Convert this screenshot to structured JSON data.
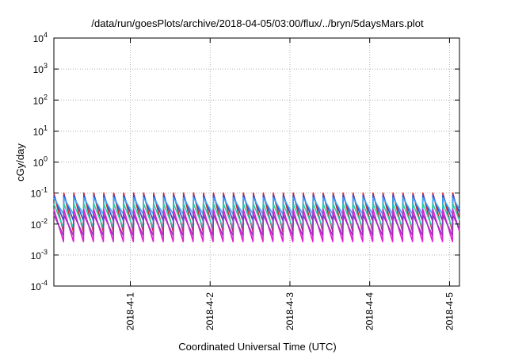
{
  "chart_data": {
    "type": "line",
    "title": "/data/run/goesPlots/archive/2018-04-05/03:00/flux/../bryn/5daysMars.plot",
    "xlabel": "Coordinated Universal Time (UTC)",
    "ylabel": "cGy/day",
    "y_scale": "log",
    "ylim": [
      0.0001,
      10000
    ],
    "xlim": [
      "2018-03-31T01:00",
      "2018-04-05T03:00"
    ],
    "y_ticks": [
      {
        "base": "10",
        "exp": "-4",
        "value": 0.0001
      },
      {
        "base": "10",
        "exp": "-3",
        "value": 0.001
      },
      {
        "base": "10",
        "exp": "-2",
        "value": 0.01
      },
      {
        "base": "10",
        "exp": "-1",
        "value": 0.1
      },
      {
        "base": "10",
        "exp": "0",
        "value": 1
      },
      {
        "base": "10",
        "exp": "1",
        "value": 10
      },
      {
        "base": "10",
        "exp": "2",
        "value": 100
      },
      {
        "base": "10",
        "exp": "3",
        "value": 1000
      },
      {
        "base": "10",
        "exp": "4",
        "value": 10000
      }
    ],
    "x_ticks": [
      {
        "label": "2018-4-1",
        "value": "2018-04-01T00:00"
      },
      {
        "label": "2018-4-2",
        "value": "2018-04-02T00:00"
      },
      {
        "label": "2018-4-3",
        "value": "2018-04-03T00:00"
      },
      {
        "label": "2018-4-4",
        "value": "2018-04-04T00:00"
      },
      {
        "label": "2018-4-5",
        "value": "2018-04-05T00:00"
      }
    ],
    "grid": true,
    "cycle_hours": 3,
    "series": [
      {
        "color": "#d4262e",
        "peak": 0.1,
        "trough": 0.005
      },
      {
        "color": "#2b50d6",
        "peak": 0.085,
        "trough": 0.012
      },
      {
        "color": "#3fa8f0",
        "peak": 0.07,
        "trough": 0.02
      },
      {
        "color": "#1fcfa8",
        "peak": 0.045,
        "trough": 0.007
      },
      {
        "color": "#e020d0",
        "peak": 0.03,
        "trough": 0.0025
      },
      {
        "color": "#a030c0",
        "peak": 0.02,
        "trough": 0.004
      }
    ]
  }
}
